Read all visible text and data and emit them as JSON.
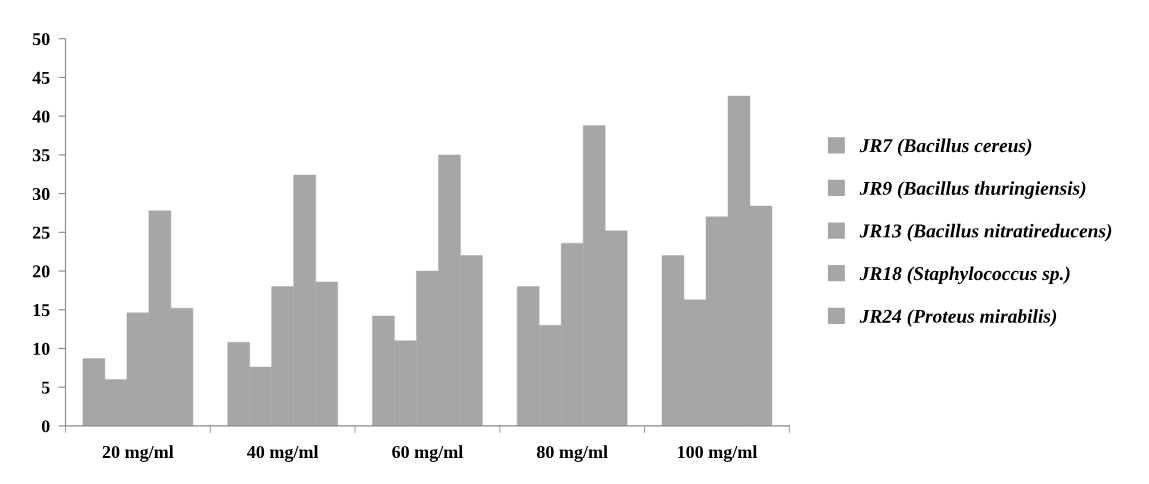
{
  "chart_data": {
    "type": "bar",
    "categories": [
      "20 mg/ml",
      "40 mg/ml",
      "60 mg/ml",
      "80 mg/ml",
      "100 mg/ml"
    ],
    "series": [
      {
        "name": "JR7 (Bacillus cereus)",
        "color": "#a6a6a6",
        "values": [
          8.7,
          10.8,
          14.2,
          18,
          22
        ]
      },
      {
        "name": "JR9 (Bacillus thuringiensis)",
        "color": "#a6a6a6",
        "values": [
          6,
          7.6,
          11,
          13,
          16.3
        ]
      },
      {
        "name": "JR13 (Bacillus nitratireducens)",
        "color": "#a6a6a6",
        "values": [
          14.6,
          18,
          20,
          23.6,
          27
        ]
      },
      {
        "name": "JR18 (Staphylococcus sp.)",
        "color": "#a6a6a6",
        "values": [
          27.8,
          32.4,
          35,
          38.8,
          42.6
        ]
      },
      {
        "name": "JR24 (Proteus mirabilis)",
        "color": "#a6a6a6",
        "values": [
          15.2,
          18.6,
          22,
          25.2,
          28.4
        ]
      }
    ],
    "ylim": [
      0,
      50
    ],
    "yticks": [
      0,
      5,
      10,
      15,
      20,
      25,
      30,
      35,
      40,
      45,
      50
    ],
    "grid": false,
    "legend": "right"
  }
}
